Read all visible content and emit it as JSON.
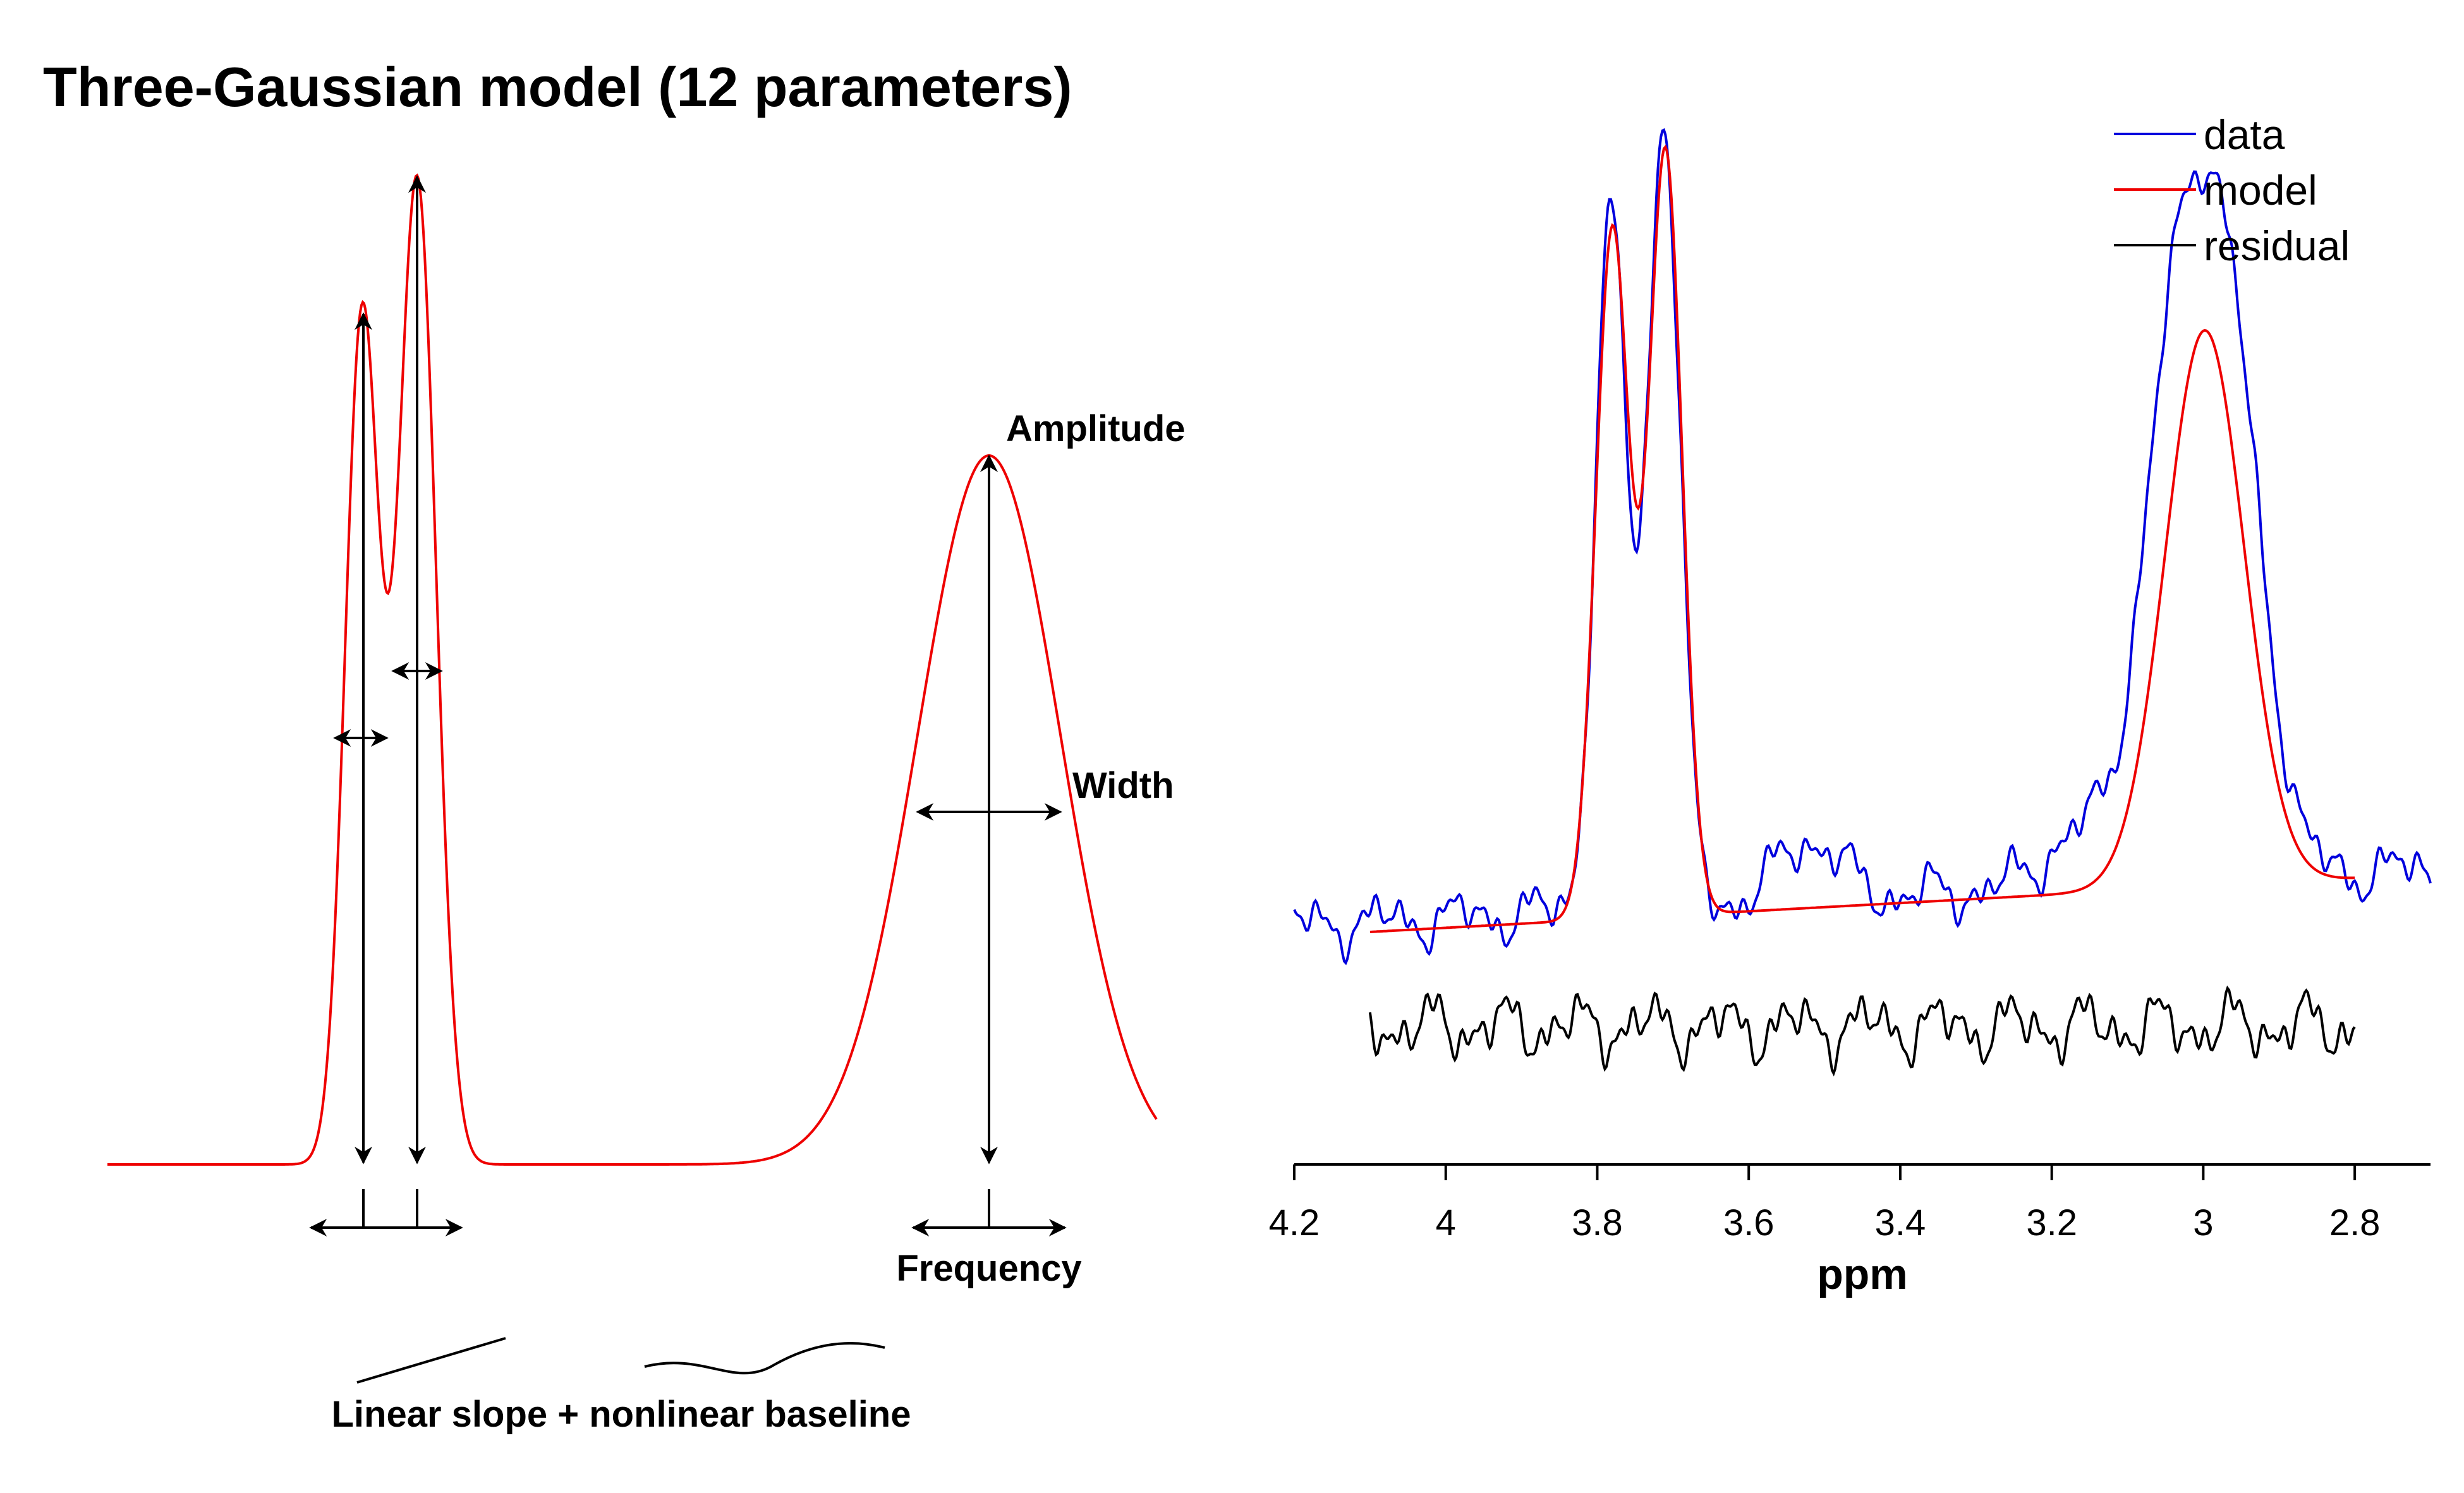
{
  "diagram": {
    "title": "Three-Gaussian model (12 parameters)",
    "labels": {
      "amplitude": "Amplitude",
      "width": "Width",
      "frequency": "Frequency",
      "baseline": "Linear slope + nonlinear baseline"
    }
  },
  "chart_data": {
    "type": "line",
    "xlabel": "ppm",
    "xlim": [
      4.2,
      2.7
    ],
    "x_reversed": true,
    "xticks": [
      "4.2",
      "4",
      "3.8",
      "3.6",
      "3.4",
      "3.2",
      "3",
      "2.8"
    ],
    "legend_position": "top-right",
    "series": [
      {
        "name": "data",
        "color": "#0000dd"
      },
      {
        "name": "model",
        "color": "#ee0000"
      },
      {
        "name": "residual",
        "color": "#000000"
      }
    ]
  }
}
